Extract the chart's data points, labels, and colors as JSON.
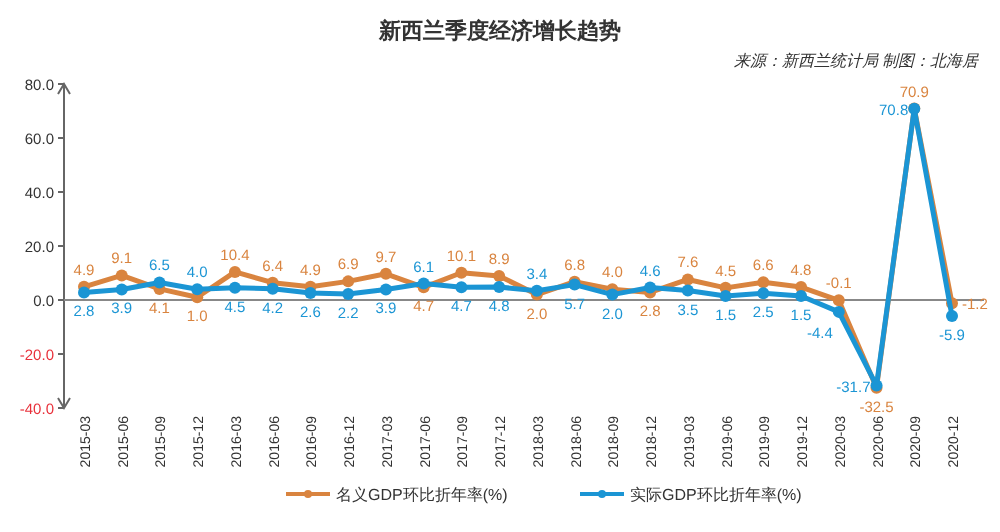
{
  "chart_data": {
    "type": "line",
    "title": "新西兰季度经济增长趋势",
    "annotations": [
      "来源：新西兰统计局 制图：北海居"
    ],
    "categories": [
      "2015-03",
      "2015-06",
      "2015-09",
      "2015-12",
      "2016-03",
      "2016-06",
      "2016-09",
      "2016-12",
      "2017-03",
      "2017-06",
      "2017-09",
      "2017-12",
      "2018-03",
      "2018-06",
      "2018-09",
      "2018-12",
      "2019-03",
      "2019-06",
      "2019-09",
      "2019-12",
      "2020-03",
      "2020-06",
      "2020-09",
      "2020-12"
    ],
    "series": [
      {
        "name": "名义GDP环比折年率(%)",
        "color": "#d9843f",
        "values": [
          4.9,
          9.1,
          4.1,
          1.0,
          10.4,
          6.4,
          4.9,
          6.9,
          9.7,
          4.7,
          10.1,
          8.9,
          2.0,
          6.8,
          4.0,
          2.8,
          7.6,
          4.5,
          6.6,
          4.8,
          -0.1,
          -32.5,
          70.9,
          -1.2
        ],
        "value_labels": [
          "4.9",
          "9.1",
          "4.1",
          "1.0",
          "10.4",
          "6.4",
          "4.9",
          "6.9",
          "9.7",
          "4.7",
          "10.1",
          "8.9",
          "2.0",
          "6.8",
          "4.0",
          "2.8",
          "7.6",
          "4.5",
          "6.6",
          "4.8",
          "-0.1",
          "-32.5",
          "70.9",
          "-1.2"
        ]
      },
      {
        "name": "实际GDP环比折年率(%)",
        "color": "#1b95d4",
        "values": [
          2.8,
          3.9,
          6.5,
          4.0,
          4.5,
          4.2,
          2.6,
          2.2,
          3.9,
          6.1,
          4.7,
          4.8,
          3.4,
          5.7,
          2.0,
          4.6,
          3.5,
          1.5,
          2.5,
          1.5,
          -4.4,
          -31.7,
          70.8,
          -5.9
        ],
        "value_labels": [
          "2.8",
          "3.9",
          "6.5",
          "4.0",
          "4.5",
          "4.2",
          "2.6",
          "2.2",
          "3.9",
          "6.1",
          "4.7",
          "4.8",
          "3.4",
          "5.7",
          "2.0",
          "4.6",
          "3.5",
          "1.5",
          "2.5",
          "1.5",
          "-4.4",
          "-31.7",
          "70.8",
          "-5.9"
        ]
      }
    ],
    "ylim": [
      -40,
      80
    ],
    "yticks": [
      {
        "value": -40,
        "label": "-40.0"
      },
      {
        "value": -20,
        "label": "-20.0"
      },
      {
        "value": 0,
        "label": "0.0"
      },
      {
        "value": 20,
        "label": "20.0"
      },
      {
        "value": 40,
        "label": "40.0"
      },
      {
        "value": 60,
        "label": "60.0"
      },
      {
        "value": 80,
        "label": "80.0"
      }
    ],
    "marker": "circle",
    "legend": "bottom"
  }
}
